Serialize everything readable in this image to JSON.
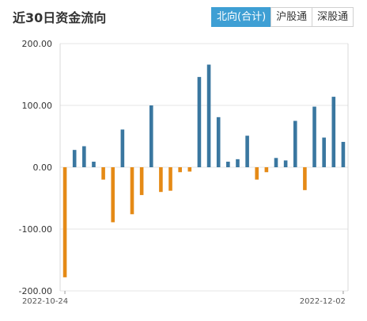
{
  "header": {
    "title": "近30日资金流向",
    "tabs": [
      {
        "label": "北向(合计)",
        "active": true
      },
      {
        "label": "沪股通",
        "active": false
      },
      {
        "label": "深股通",
        "active": false
      }
    ]
  },
  "colors": {
    "positive": "#3a77a0",
    "negative": "#e58a16",
    "tab_active": "#3e9fd4",
    "grid": "#e6e6e6"
  },
  "chart_data": {
    "type": "bar",
    "title": "",
    "xlabel": "",
    "ylabel": "",
    "ylim": [
      -200,
      200
    ],
    "yticks": [
      "200.00",
      "100.00",
      "0.00",
      "-100.00",
      "-200.00"
    ],
    "ytick_values": [
      200,
      100,
      0,
      -100,
      -200
    ],
    "xtick_labels": [
      "2022-10-24",
      "2022-12-02"
    ],
    "grid": true,
    "values": [
      -178,
      28,
      34,
      9,
      -20,
      -89,
      61,
      -76,
      -45,
      100,
      -40,
      -38,
      -8,
      -7,
      146,
      166,
      81,
      9,
      13,
      51,
      -20,
      -8,
      15,
      11,
      75,
      -37,
      98,
      48,
      114,
      41
    ]
  }
}
